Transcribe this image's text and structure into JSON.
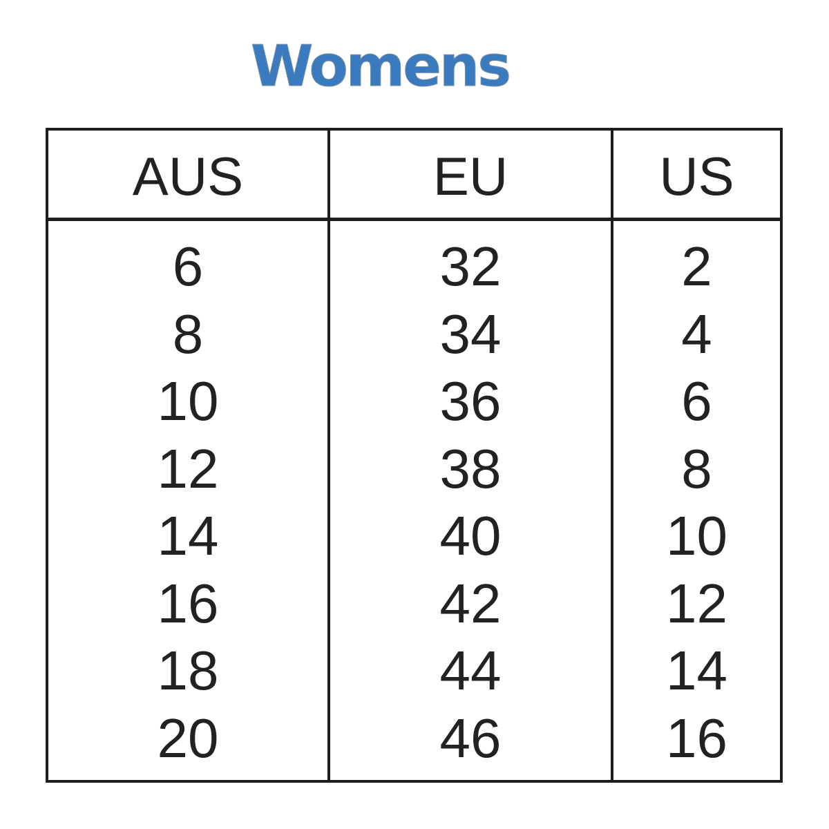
{
  "title": "Womens",
  "colors": {
    "title": "#3a7bc0",
    "border": "#1e1e1e",
    "text": "#222222"
  },
  "table": {
    "headers": [
      "AUS",
      "EU",
      "US"
    ],
    "rows": [
      [
        "6",
        "32",
        "2"
      ],
      [
        "8",
        "34",
        "4"
      ],
      [
        "10",
        "36",
        "6"
      ],
      [
        "12",
        "38",
        "8"
      ],
      [
        "14",
        "40",
        "10"
      ],
      [
        "16",
        "42",
        "12"
      ],
      [
        "18",
        "44",
        "14"
      ],
      [
        "20",
        "46",
        "16"
      ]
    ]
  }
}
